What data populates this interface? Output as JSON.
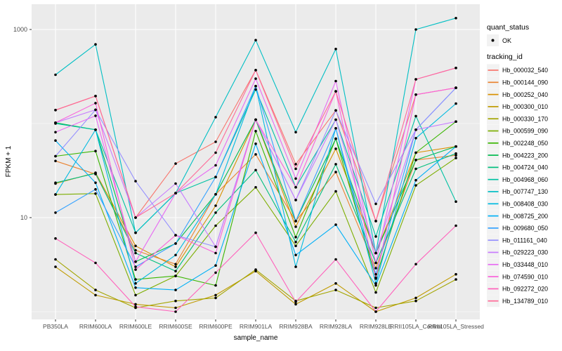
{
  "chart_data": {
    "type": "line",
    "title": "",
    "xlabel": "sample_name",
    "ylabel": "FPKM + 1",
    "y_scale": "log10",
    "y_ticks": [
      10,
      1000
    ],
    "y_minor_ticks": [
      1,
      100
    ],
    "ylim": [
      1,
      1850
    ],
    "grid": true,
    "panel_bg": "#EBEBEB",
    "grid_color": "#FFFFFF",
    "axis_text_color": "#4D4D4D",
    "tick_color": "#333333",
    "point_color": "#000000",
    "legend_position": "right",
    "categories": [
      "PB350LA",
      "RRIM600LA",
      "RRIM600LE",
      "RRIM600SE",
      "RRIM600PE",
      "RRIM901LA",
      "RRIM928BA",
      "RRIM928LA",
      "RRIM928LE",
      "RRII105LA_Control",
      "RRII105LA_Stressed"
    ],
    "series": [
      {
        "name": "Hb_000032_540",
        "color": "#F8766D",
        "values": [
          139,
          196,
          10,
          37.5,
          64,
          370,
          37,
          138,
          9.2,
          203,
          240
        ]
      },
      {
        "name": "Hb_000144_090",
        "color": "#EA8331",
        "values": [
          40,
          29,
          4.5,
          3.2,
          17.7,
          47,
          9.2,
          30.5,
          2.9,
          41,
          46
        ]
      },
      {
        "name": "Hb_000252_040",
        "color": "#D89000",
        "values": [
          23,
          30,
          5,
          3,
          13.4,
          110,
          8,
          54,
          4.2,
          49,
          57
        ]
      },
      {
        "name": "Hb_000300_010",
        "color": "#C09B00",
        "values": [
          3,
          1.5,
          1.2,
          1.1,
          1.5,
          2.7,
          1.2,
          2,
          1,
          1.4,
          2.5
        ]
      },
      {
        "name": "Hb_000330_170",
        "color": "#A3A500",
        "values": [
          3.6,
          1.7,
          1.1,
          1.3,
          1.4,
          2.8,
          1.3,
          1.7,
          1.1,
          1.3,
          2.2
        ]
      },
      {
        "name": "Hb_000599_090",
        "color": "#7CAE00",
        "values": [
          17.6,
          18,
          1.5,
          2.4,
          8.2,
          21,
          5,
          19,
          1.6,
          22,
          43
        ]
      },
      {
        "name": "Hb_002248_050",
        "color": "#39B600",
        "values": [
          45,
          51,
          2.2,
          2.4,
          1.9,
          83,
          6.2,
          69,
          2.3,
          49,
          105
        ]
      },
      {
        "name": "Hb_004223_200",
        "color": "#00BB4E",
        "values": [
          102,
          86,
          3.4,
          5.3,
          17.7,
          110,
          9.2,
          69,
          4.2,
          41,
          57
        ]
      },
      {
        "name": "Hb_004724_040",
        "color": "#00BF7D",
        "values": [
          23.5,
          29.5,
          4.2,
          2.7,
          11.3,
          32,
          5.5,
          37,
          3.3,
          33,
          48
        ]
      },
      {
        "name": "Hb_004968_060",
        "color": "#00C1A3",
        "values": [
          100,
          86,
          6.9,
          18.2,
          27,
          230,
          21,
          110,
          6.3,
          120,
          14.8
        ]
      },
      {
        "name": "Hb_007747_130",
        "color": "#00BFC4",
        "values": [
          330,
          695,
          6.9,
          18.2,
          117,
          770,
          81,
          620,
          4.2,
          1000,
          1320
        ]
      },
      {
        "name": "Hb_008408_030",
        "color": "#00BAE0",
        "values": [
          17.6,
          86,
          2,
          4,
          17.7,
          250,
          3,
          89,
          2,
          70,
          163
        ]
      },
      {
        "name": "Hb_008725_200",
        "color": "#00B0F6",
        "values": [
          66,
          23.5,
          1.8,
          1.7,
          3.1,
          61,
          4,
          8.4,
          1.9,
          25,
          57
        ]
      },
      {
        "name": "Hb_009680_050",
        "color": "#35A2FF",
        "values": [
          11.3,
          20,
          3,
          5.3,
          27,
          250,
          9.2,
          89,
          2.5,
          86,
          240
        ]
      },
      {
        "name": "Hb_011161_040",
        "color": "#9590FF",
        "values": [
          45,
          140,
          24.4,
          6.5,
          4.9,
          110,
          15.4,
          138,
          14,
          86,
          240
        ]
      },
      {
        "name": "Hb_029223_030",
        "color": "#C77CFF",
        "values": [
          102,
          140,
          10,
          23,
          4.9,
          110,
          15.4,
          110,
          4.2,
          86,
          105
        ]
      },
      {
        "name": "Hb_033448_010",
        "color": "#E76BF3",
        "values": [
          81,
          121,
          3.4,
          18.2,
          36,
          300,
          26,
          283,
          3.3,
          295,
          390
        ]
      },
      {
        "name": "Hb_074590_010",
        "color": "#FA62DB",
        "values": [
          102,
          165,
          2.8,
          6.5,
          4.2,
          110,
          21,
          220,
          2.25,
          203,
          240
        ]
      },
      {
        "name": "Hb_092272_020",
        "color": "#FF62BC",
        "values": [
          6,
          3.3,
          1.13,
          1,
          2.6,
          6.9,
          1.27,
          3.6,
          1,
          3.2,
          8.2
        ]
      },
      {
        "name": "Hb_134789_010",
        "color": "#FF6A98",
        "values": [
          139,
          196,
          10,
          18.2,
          49,
          370,
          33,
          220,
          9.2,
          295,
          390
        ]
      }
    ]
  },
  "legend": {
    "quant_status_title": "quant_status",
    "ok_label": "OK",
    "tracking_title": "tracking_id",
    "key_bg": "#F2F2F2"
  }
}
